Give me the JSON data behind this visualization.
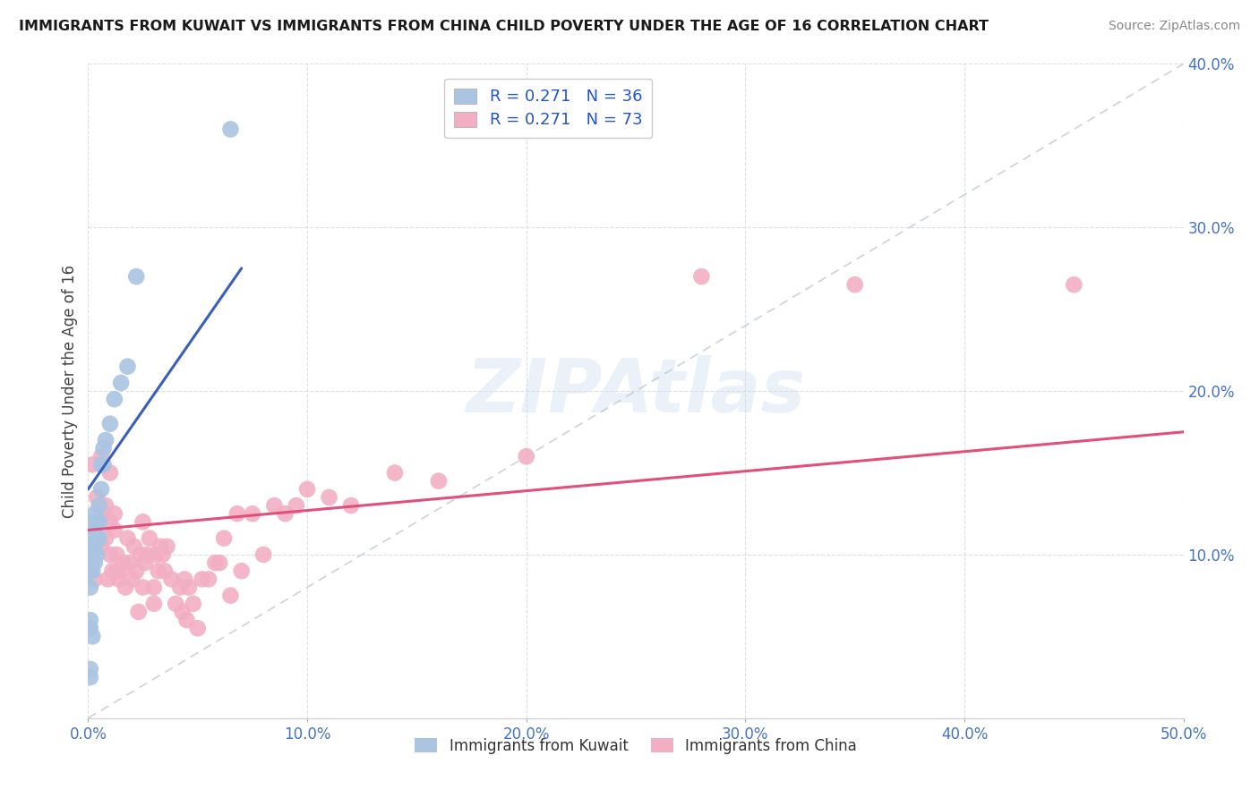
{
  "title": "IMMIGRANTS FROM KUWAIT VS IMMIGRANTS FROM CHINA CHILD POVERTY UNDER THE AGE OF 16 CORRELATION CHART",
  "source": "Source: ZipAtlas.com",
  "ylabel": "Child Poverty Under the Age of 16",
  "xlim": [
    0.0,
    0.5
  ],
  "ylim": [
    0.0,
    0.4
  ],
  "xticks": [
    0.0,
    0.1,
    0.2,
    0.3,
    0.4,
    0.5
  ],
  "yticks": [
    0.0,
    0.1,
    0.2,
    0.3,
    0.4
  ],
  "xtick_labels": [
    "0.0%",
    "10.0%",
    "20.0%",
    "30.0%",
    "40.0%",
    "50.0%"
  ],
  "ytick_labels": [
    "",
    "10.0%",
    "20.0%",
    "30.0%",
    "40.0%"
  ],
  "kuwait_color": "#aac4e2",
  "china_color": "#f2afc3",
  "kuwait_R": 0.271,
  "kuwait_N": 36,
  "china_R": 0.271,
  "china_N": 73,
  "kuwait_trend_color": "#3a5fba",
  "china_trend_color": "#e0507a",
  "dashed_line_color": "#c0c8d0",
  "background_color": "#ffffff",
  "grid_color": "#d8dde2",
  "watermark": "ZIPAtlas",
  "kuwait_x": [
    0.001,
    0.001,
    0.001,
    0.001,
    0.001,
    0.001,
    0.001,
    0.001,
    0.002,
    0.002,
    0.002,
    0.002,
    0.002,
    0.002,
    0.002,
    0.003,
    0.003,
    0.003,
    0.003,
    0.004,
    0.004,
    0.004,
    0.005,
    0.005,
    0.005,
    0.006,
    0.006,
    0.007,
    0.007,
    0.008,
    0.01,
    0.012,
    0.015,
    0.018,
    0.022,
    0.065
  ],
  "kuwait_y": [
    0.025,
    0.03,
    0.055,
    0.06,
    0.08,
    0.09,
    0.1,
    0.11,
    0.05,
    0.09,
    0.095,
    0.1,
    0.105,
    0.115,
    0.12,
    0.095,
    0.105,
    0.115,
    0.125,
    0.1,
    0.11,
    0.12,
    0.11,
    0.12,
    0.13,
    0.14,
    0.155,
    0.155,
    0.165,
    0.17,
    0.18,
    0.195,
    0.205,
    0.215,
    0.27,
    0.36
  ],
  "china_x": [
    0.002,
    0.003,
    0.004,
    0.005,
    0.006,
    0.006,
    0.007,
    0.008,
    0.008,
    0.009,
    0.01,
    0.01,
    0.01,
    0.011,
    0.012,
    0.012,
    0.013,
    0.013,
    0.014,
    0.015,
    0.016,
    0.017,
    0.018,
    0.019,
    0.02,
    0.021,
    0.022,
    0.023,
    0.024,
    0.025,
    0.025,
    0.026,
    0.027,
    0.028,
    0.03,
    0.03,
    0.031,
    0.032,
    0.033,
    0.034,
    0.035,
    0.036,
    0.038,
    0.04,
    0.042,
    0.043,
    0.044,
    0.045,
    0.046,
    0.048,
    0.05,
    0.052,
    0.055,
    0.058,
    0.06,
    0.062,
    0.065,
    0.068,
    0.07,
    0.075,
    0.08,
    0.085,
    0.09,
    0.095,
    0.1,
    0.11,
    0.12,
    0.14,
    0.16,
    0.2,
    0.28,
    0.35,
    0.45
  ],
  "china_y": [
    0.155,
    0.085,
    0.135,
    0.12,
    0.105,
    0.16,
    0.125,
    0.11,
    0.13,
    0.085,
    0.1,
    0.12,
    0.15,
    0.09,
    0.115,
    0.125,
    0.09,
    0.1,
    0.085,
    0.09,
    0.095,
    0.08,
    0.11,
    0.095,
    0.085,
    0.105,
    0.09,
    0.065,
    0.1,
    0.08,
    0.12,
    0.095,
    0.1,
    0.11,
    0.07,
    0.08,
    0.1,
    0.09,
    0.105,
    0.1,
    0.09,
    0.105,
    0.085,
    0.07,
    0.08,
    0.065,
    0.085,
    0.06,
    0.08,
    0.07,
    0.055,
    0.085,
    0.085,
    0.095,
    0.095,
    0.11,
    0.075,
    0.125,
    0.09,
    0.125,
    0.1,
    0.13,
    0.125,
    0.13,
    0.14,
    0.135,
    0.13,
    0.15,
    0.145,
    0.16,
    0.27,
    0.265,
    0.265
  ],
  "kuwait_trend_x": [
    0.0,
    0.07
  ],
  "kuwait_trend_y": [
    0.14,
    0.275
  ],
  "china_trend_x": [
    0.0,
    0.5
  ],
  "china_trend_y": [
    0.115,
    0.175
  ]
}
